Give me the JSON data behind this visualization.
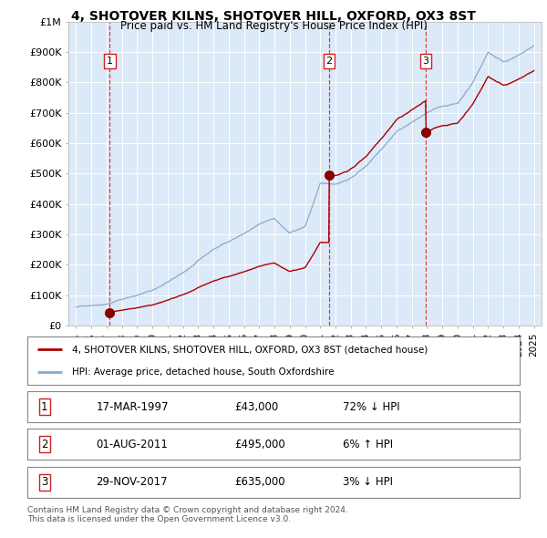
{
  "title": "4, SHOTOVER KILNS, SHOTOVER HILL, OXFORD, OX3 8ST",
  "subtitle": "Price paid vs. HM Land Registry's House Price Index (HPI)",
  "sales": [
    {
      "index": 1,
      "date": "17-MAR-1997",
      "year": 1997.21,
      "price": 43000,
      "hpi_rel": "72% ↓ HPI"
    },
    {
      "index": 2,
      "date": "01-AUG-2011",
      "year": 2011.58,
      "price": 495000,
      "hpi_rel": "6% ↑ HPI"
    },
    {
      "index": 3,
      "date": "29-NOV-2017",
      "year": 2017.91,
      "price": 635000,
      "hpi_rel": "3% ↓ HPI"
    }
  ],
  "legend_red": "4, SHOTOVER KILNS, SHOTOVER HILL, OXFORD, OX3 8ST (detached house)",
  "legend_blue": "HPI: Average price, detached house, South Oxfordshire",
  "table_rows": [
    [
      "1",
      "17-MAR-1997",
      "£43,000",
      "72% ↓ HPI"
    ],
    [
      "2",
      "01-AUG-2011",
      "£495,000",
      "6% ↑ HPI"
    ],
    [
      "3",
      "29-NOV-2017",
      "£635,000",
      "3% ↓ HPI"
    ]
  ],
  "footer": "Contains HM Land Registry data © Crown copyright and database right 2024.\nThis data is licensed under the Open Government Licence v3.0.",
  "ylim": [
    0,
    1000000
  ],
  "yticks": [
    0,
    100000,
    200000,
    300000,
    400000,
    500000,
    600000,
    700000,
    800000,
    900000,
    1000000
  ],
  "ytick_labels": [
    "£0",
    "£100K",
    "£200K",
    "£300K",
    "£400K",
    "£500K",
    "£600K",
    "£700K",
    "£800K",
    "£900K",
    "£1M"
  ],
  "xlim": [
    1994.5,
    2025.5
  ],
  "xticks": [
    1995,
    1996,
    1997,
    1998,
    1999,
    2000,
    2001,
    2002,
    2003,
    2004,
    2005,
    2006,
    2007,
    2008,
    2009,
    2010,
    2011,
    2012,
    2013,
    2014,
    2015,
    2016,
    2017,
    2018,
    2019,
    2020,
    2021,
    2022,
    2023,
    2024,
    2025
  ],
  "bg_color": "#dce9f8",
  "grid_color": "#ffffff",
  "red_color": "#aa0000",
  "blue_color": "#88aacc",
  "sale_marker_color": "#880000",
  "vline_color": "#cc2222",
  "hpi_base_year": 1995,
  "hpi_base_value": 60000,
  "hpi_keypoints": [
    [
      1995,
      60000
    ],
    [
      1997,
      75000
    ],
    [
      2000,
      120000
    ],
    [
      2002,
      175000
    ],
    [
      2004,
      250000
    ],
    [
      2007,
      330000
    ],
    [
      2008,
      350000
    ],
    [
      2009,
      300000
    ],
    [
      2010,
      320000
    ],
    [
      2011,
      460000
    ],
    [
      2012,
      460000
    ],
    [
      2013,
      480000
    ],
    [
      2014,
      520000
    ],
    [
      2015,
      580000
    ],
    [
      2016,
      640000
    ],
    [
      2017,
      670000
    ],
    [
      2018,
      700000
    ],
    [
      2019,
      720000
    ],
    [
      2020,
      730000
    ],
    [
      2021,
      800000
    ],
    [
      2022,
      900000
    ],
    [
      2023,
      870000
    ],
    [
      2024,
      890000
    ],
    [
      2025,
      920000
    ]
  ]
}
